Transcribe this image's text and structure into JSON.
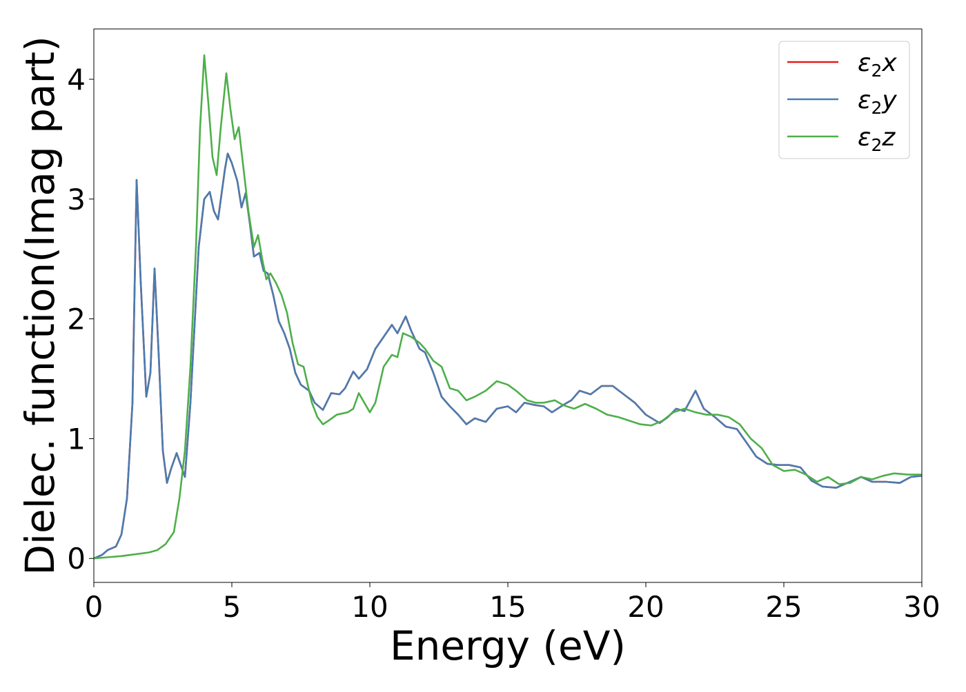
{
  "chart_data": {
    "type": "line",
    "title": "",
    "xlabel": "Energy (eV)",
    "ylabel": "Dielec. function(Imag part)",
    "xlim": [
      0,
      30
    ],
    "ylim": [
      -0.2,
      4.42
    ],
    "xticks": [
      0,
      5,
      10,
      15,
      20,
      25,
      30
    ],
    "yticks": [
      0,
      1,
      2,
      3,
      4
    ],
    "grid": false,
    "legend_position": "top-right",
    "series": [
      {
        "name": "ε2x",
        "legend_label": "x",
        "color": "#e41a1c",
        "points": [
          [
            0,
            0
          ],
          [
            0.3,
            0.03
          ],
          [
            0.5,
            0.07
          ],
          [
            0.8,
            0.1
          ],
          [
            1.0,
            0.2
          ],
          [
            1.2,
            0.5
          ],
          [
            1.4,
            1.3
          ],
          [
            1.55,
            3.16
          ],
          [
            1.7,
            2.3
          ],
          [
            1.9,
            1.35
          ],
          [
            2.05,
            1.55
          ],
          [
            2.2,
            2.42
          ],
          [
            2.35,
            1.7
          ],
          [
            2.5,
            0.9
          ],
          [
            2.65,
            0.63
          ],
          [
            2.8,
            0.75
          ],
          [
            3.0,
            0.88
          ],
          [
            3.15,
            0.78
          ],
          [
            3.3,
            0.68
          ],
          [
            3.5,
            1.3
          ],
          [
            3.8,
            2.6
          ],
          [
            4.0,
            3.0
          ],
          [
            4.2,
            3.06
          ],
          [
            4.35,
            2.9
          ],
          [
            4.5,
            2.83
          ],
          [
            4.75,
            3.25
          ],
          [
            4.85,
            3.38
          ],
          [
            5.0,
            3.3
          ],
          [
            5.2,
            3.15
          ],
          [
            5.35,
            2.93
          ],
          [
            5.5,
            3.05
          ],
          [
            5.65,
            2.8
          ],
          [
            5.8,
            2.52
          ],
          [
            6.0,
            2.55
          ],
          [
            6.15,
            2.4
          ],
          [
            6.3,
            2.38
          ],
          [
            6.5,
            2.2
          ],
          [
            6.7,
            1.98
          ],
          [
            6.9,
            1.88
          ],
          [
            7.1,
            1.75
          ],
          [
            7.3,
            1.55
          ],
          [
            7.5,
            1.45
          ],
          [
            7.8,
            1.4
          ],
          [
            8.0,
            1.3
          ],
          [
            8.3,
            1.24
          ],
          [
            8.6,
            1.38
          ],
          [
            8.9,
            1.37
          ],
          [
            9.1,
            1.42
          ],
          [
            9.4,
            1.56
          ],
          [
            9.6,
            1.5
          ],
          [
            9.9,
            1.58
          ],
          [
            10.2,
            1.75
          ],
          [
            10.5,
            1.85
          ],
          [
            10.8,
            1.95
          ],
          [
            11.0,
            1.88
          ],
          [
            11.3,
            2.02
          ],
          [
            11.5,
            1.9
          ],
          [
            11.8,
            1.75
          ],
          [
            12.0,
            1.72
          ],
          [
            12.3,
            1.55
          ],
          [
            12.6,
            1.35
          ],
          [
            12.9,
            1.27
          ],
          [
            13.2,
            1.2
          ],
          [
            13.5,
            1.12
          ],
          [
            13.8,
            1.17
          ],
          [
            14.2,
            1.14
          ],
          [
            14.6,
            1.25
          ],
          [
            15.0,
            1.27
          ],
          [
            15.3,
            1.22
          ],
          [
            15.6,
            1.3
          ],
          [
            16.0,
            1.28
          ],
          [
            16.3,
            1.27
          ],
          [
            16.6,
            1.22
          ],
          [
            17.0,
            1.28
          ],
          [
            17.3,
            1.32
          ],
          [
            17.6,
            1.4
          ],
          [
            18.0,
            1.37
          ],
          [
            18.4,
            1.44
          ],
          [
            18.8,
            1.44
          ],
          [
            19.2,
            1.37
          ],
          [
            19.6,
            1.3
          ],
          [
            20.0,
            1.2
          ],
          [
            20.5,
            1.13
          ],
          [
            20.8,
            1.18
          ],
          [
            21.1,
            1.25
          ],
          [
            21.4,
            1.23
          ],
          [
            21.8,
            1.4
          ],
          [
            22.1,
            1.25
          ],
          [
            22.5,
            1.18
          ],
          [
            22.9,
            1.1
          ],
          [
            23.3,
            1.08
          ],
          [
            23.7,
            0.95
          ],
          [
            24.0,
            0.85
          ],
          [
            24.4,
            0.79
          ],
          [
            24.8,
            0.78
          ],
          [
            25.2,
            0.78
          ],
          [
            25.6,
            0.76
          ],
          [
            26.0,
            0.65
          ],
          [
            26.4,
            0.6
          ],
          [
            26.9,
            0.59
          ],
          [
            27.3,
            0.63
          ],
          [
            27.8,
            0.68
          ],
          [
            28.2,
            0.64
          ],
          [
            28.7,
            0.64
          ],
          [
            29.2,
            0.63
          ],
          [
            29.6,
            0.68
          ],
          [
            30.0,
            0.69
          ]
        ]
      },
      {
        "name": "ε2y",
        "legend_label": "y",
        "color": "#4a7cb0",
        "points": [
          [
            0,
            0
          ],
          [
            0.3,
            0.03
          ],
          [
            0.5,
            0.07
          ],
          [
            0.8,
            0.1
          ],
          [
            1.0,
            0.2
          ],
          [
            1.2,
            0.5
          ],
          [
            1.4,
            1.3
          ],
          [
            1.55,
            3.16
          ],
          [
            1.7,
            2.3
          ],
          [
            1.9,
            1.35
          ],
          [
            2.05,
            1.55
          ],
          [
            2.2,
            2.42
          ],
          [
            2.35,
            1.7
          ],
          [
            2.5,
            0.9
          ],
          [
            2.65,
            0.63
          ],
          [
            2.8,
            0.75
          ],
          [
            3.0,
            0.88
          ],
          [
            3.15,
            0.78
          ],
          [
            3.3,
            0.68
          ],
          [
            3.5,
            1.3
          ],
          [
            3.8,
            2.6
          ],
          [
            4.0,
            3.0
          ],
          [
            4.2,
            3.06
          ],
          [
            4.35,
            2.9
          ],
          [
            4.5,
            2.83
          ],
          [
            4.75,
            3.25
          ],
          [
            4.85,
            3.38
          ],
          [
            5.0,
            3.3
          ],
          [
            5.2,
            3.15
          ],
          [
            5.35,
            2.93
          ],
          [
            5.5,
            3.05
          ],
          [
            5.65,
            2.8
          ],
          [
            5.8,
            2.52
          ],
          [
            6.0,
            2.55
          ],
          [
            6.15,
            2.4
          ],
          [
            6.3,
            2.38
          ],
          [
            6.5,
            2.2
          ],
          [
            6.7,
            1.98
          ],
          [
            6.9,
            1.88
          ],
          [
            7.1,
            1.75
          ],
          [
            7.3,
            1.55
          ],
          [
            7.5,
            1.45
          ],
          [
            7.8,
            1.4
          ],
          [
            8.0,
            1.3
          ],
          [
            8.3,
            1.24
          ],
          [
            8.6,
            1.38
          ],
          [
            8.9,
            1.37
          ],
          [
            9.1,
            1.42
          ],
          [
            9.4,
            1.56
          ],
          [
            9.6,
            1.5
          ],
          [
            9.9,
            1.58
          ],
          [
            10.2,
            1.75
          ],
          [
            10.5,
            1.85
          ],
          [
            10.8,
            1.95
          ],
          [
            11.0,
            1.88
          ],
          [
            11.3,
            2.02
          ],
          [
            11.5,
            1.9
          ],
          [
            11.8,
            1.75
          ],
          [
            12.0,
            1.72
          ],
          [
            12.3,
            1.55
          ],
          [
            12.6,
            1.35
          ],
          [
            12.9,
            1.27
          ],
          [
            13.2,
            1.2
          ],
          [
            13.5,
            1.12
          ],
          [
            13.8,
            1.17
          ],
          [
            14.2,
            1.14
          ],
          [
            14.6,
            1.25
          ],
          [
            15.0,
            1.27
          ],
          [
            15.3,
            1.22
          ],
          [
            15.6,
            1.3
          ],
          [
            16.0,
            1.28
          ],
          [
            16.3,
            1.27
          ],
          [
            16.6,
            1.22
          ],
          [
            17.0,
            1.28
          ],
          [
            17.3,
            1.32
          ],
          [
            17.6,
            1.4
          ],
          [
            18.0,
            1.37
          ],
          [
            18.4,
            1.44
          ],
          [
            18.8,
            1.44
          ],
          [
            19.2,
            1.37
          ],
          [
            19.6,
            1.3
          ],
          [
            20.0,
            1.2
          ],
          [
            20.5,
            1.13
          ],
          [
            20.8,
            1.18
          ],
          [
            21.1,
            1.25
          ],
          [
            21.4,
            1.23
          ],
          [
            21.8,
            1.4
          ],
          [
            22.1,
            1.25
          ],
          [
            22.5,
            1.18
          ],
          [
            22.9,
            1.1
          ],
          [
            23.3,
            1.08
          ],
          [
            23.7,
            0.95
          ],
          [
            24.0,
            0.85
          ],
          [
            24.4,
            0.79
          ],
          [
            24.8,
            0.78
          ],
          [
            25.2,
            0.78
          ],
          [
            25.6,
            0.76
          ],
          [
            26.0,
            0.65
          ],
          [
            26.4,
            0.6
          ],
          [
            26.9,
            0.59
          ],
          [
            27.3,
            0.63
          ],
          [
            27.8,
            0.68
          ],
          [
            28.2,
            0.64
          ],
          [
            28.7,
            0.64
          ],
          [
            29.2,
            0.63
          ],
          [
            29.6,
            0.68
          ],
          [
            30.0,
            0.69
          ]
        ]
      },
      {
        "name": "ε2z",
        "legend_label": "z",
        "color": "#4daf4a",
        "points": [
          [
            0,
            0
          ],
          [
            0.5,
            0.01
          ],
          [
            1.0,
            0.02
          ],
          [
            1.5,
            0.035
          ],
          [
            2.0,
            0.05
          ],
          [
            2.3,
            0.07
          ],
          [
            2.6,
            0.12
          ],
          [
            2.9,
            0.22
          ],
          [
            3.1,
            0.5
          ],
          [
            3.3,
            0.9
          ],
          [
            3.5,
            1.6
          ],
          [
            3.7,
            2.6
          ],
          [
            3.85,
            3.6
          ],
          [
            4.0,
            4.2
          ],
          [
            4.15,
            3.8
          ],
          [
            4.3,
            3.35
          ],
          [
            4.45,
            3.2
          ],
          [
            4.6,
            3.6
          ],
          [
            4.8,
            4.05
          ],
          [
            4.95,
            3.75
          ],
          [
            5.1,
            3.5
          ],
          [
            5.25,
            3.6
          ],
          [
            5.4,
            3.3
          ],
          [
            5.6,
            2.9
          ],
          [
            5.8,
            2.6
          ],
          [
            5.95,
            2.7
          ],
          [
            6.1,
            2.5
          ],
          [
            6.25,
            2.33
          ],
          [
            6.4,
            2.38
          ],
          [
            6.6,
            2.3
          ],
          [
            6.8,
            2.2
          ],
          [
            7.0,
            2.05
          ],
          [
            7.2,
            1.8
          ],
          [
            7.4,
            1.62
          ],
          [
            7.6,
            1.6
          ],
          [
            7.9,
            1.3
          ],
          [
            8.1,
            1.18
          ],
          [
            8.3,
            1.12
          ],
          [
            8.5,
            1.15
          ],
          [
            8.8,
            1.2
          ],
          [
            9.2,
            1.22
          ],
          [
            9.4,
            1.25
          ],
          [
            9.6,
            1.38
          ],
          [
            9.8,
            1.3
          ],
          [
            10.0,
            1.22
          ],
          [
            10.2,
            1.3
          ],
          [
            10.5,
            1.6
          ],
          [
            10.8,
            1.7
          ],
          [
            11.0,
            1.68
          ],
          [
            11.2,
            1.88
          ],
          [
            11.5,
            1.85
          ],
          [
            11.8,
            1.8
          ],
          [
            12.0,
            1.75
          ],
          [
            12.3,
            1.65
          ],
          [
            12.6,
            1.6
          ],
          [
            12.9,
            1.42
          ],
          [
            13.2,
            1.4
          ],
          [
            13.5,
            1.32
          ],
          [
            13.8,
            1.35
          ],
          [
            14.2,
            1.4
          ],
          [
            14.6,
            1.48
          ],
          [
            15.0,
            1.45
          ],
          [
            15.3,
            1.4
          ],
          [
            15.7,
            1.32
          ],
          [
            16.0,
            1.3
          ],
          [
            16.3,
            1.3
          ],
          [
            16.7,
            1.32
          ],
          [
            17.0,
            1.28
          ],
          [
            17.4,
            1.25
          ],
          [
            17.8,
            1.29
          ],
          [
            18.2,
            1.25
          ],
          [
            18.6,
            1.2
          ],
          [
            19.0,
            1.18
          ],
          [
            19.4,
            1.15
          ],
          [
            19.8,
            1.12
          ],
          [
            20.2,
            1.11
          ],
          [
            20.6,
            1.15
          ],
          [
            21.0,
            1.22
          ],
          [
            21.4,
            1.25
          ],
          [
            21.8,
            1.22
          ],
          [
            22.2,
            1.2
          ],
          [
            22.6,
            1.2
          ],
          [
            23.0,
            1.18
          ],
          [
            23.4,
            1.12
          ],
          [
            23.8,
            1.0
          ],
          [
            24.2,
            0.92
          ],
          [
            24.6,
            0.78
          ],
          [
            25.0,
            0.73
          ],
          [
            25.4,
            0.74
          ],
          [
            25.8,
            0.7
          ],
          [
            26.2,
            0.64
          ],
          [
            26.6,
            0.68
          ],
          [
            27.0,
            0.62
          ],
          [
            27.4,
            0.63
          ],
          [
            27.8,
            0.68
          ],
          [
            28.2,
            0.66
          ],
          [
            28.6,
            0.69
          ],
          [
            29.0,
            0.71
          ],
          [
            29.5,
            0.7
          ],
          [
            30.0,
            0.7
          ]
        ]
      }
    ]
  }
}
